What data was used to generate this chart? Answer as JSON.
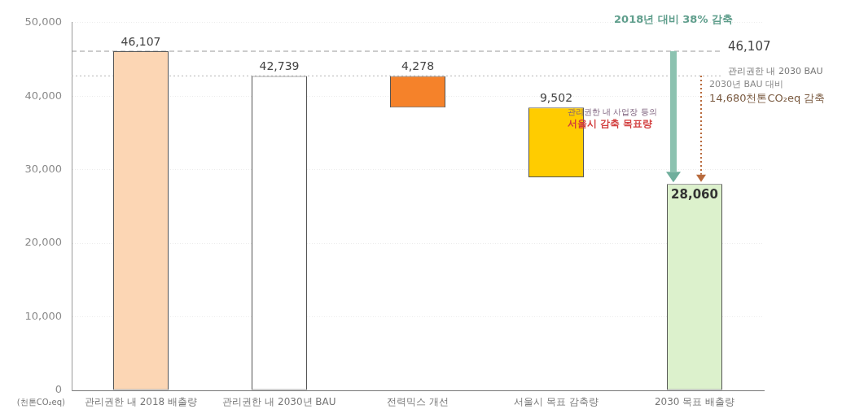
{
  "chart_data": {
    "type": "bar",
    "categories": [
      "관리권한 내 2018 배출량",
      "관리권한 내 2030년 BAU",
      "전력믹스 개선",
      "서울시 목표 감축량",
      "2030 목표 배출량"
    ],
    "values": [
      46107,
      42739,
      4278,
      9502,
      28060
    ],
    "base": [
      0,
      0,
      38461,
      28959,
      0
    ],
    "colors": [
      "#fcd6b4",
      "#ffffff",
      "#f5822a",
      "#ffcc00",
      "#dcf1cc"
    ],
    "value_labels": [
      "46,107",
      "42,739",
      "4,278",
      "9,502",
      "28,060"
    ],
    "ylabel": "(천톤CO₂eq)",
    "ylim": [
      0,
      50000
    ],
    "yticks": [
      0,
      {
        "value": 10000,
        "label": "10,000"
      },
      {
        "value": 20000,
        "label": "20,000"
      },
      {
        "value": 30000,
        "label": "30,000"
      },
      {
        "value": 40000,
        "label": "40,000"
      },
      {
        "value": 50000,
        "label": "50,000"
      }
    ],
    "grid": "y",
    "ref_lines": [
      {
        "axis": "y",
        "value": 46107,
        "label": "46,107",
        "color": "#9a9a9a",
        "line_style": "dashed"
      },
      {
        "axis": "y",
        "value": 42739,
        "label": "관리권한 내 2030 BAU",
        "color": "#c4c4c4",
        "line_style": "dotted"
      }
    ],
    "annotations": [
      {
        "text": "2018년 대비 38% 감축",
        "x": "2030 목표 배출량",
        "y": 46107
      },
      {
        "text": "2030년 BAU 대비",
        "x": "2030 목표 배출량",
        "y": 42739
      },
      {
        "text": "14,680천톤CO₂eq 감축",
        "x": "2030 목표 배출량",
        "y": 42739
      },
      {
        "text": "관리권한 내 사업장 등의",
        "x": "서울시 목표 감축량",
        "y": 38461
      },
      {
        "text": "서울시 감축 목표량",
        "x": "서울시 목표 감축량",
        "y": 38461
      }
    ]
  }
}
